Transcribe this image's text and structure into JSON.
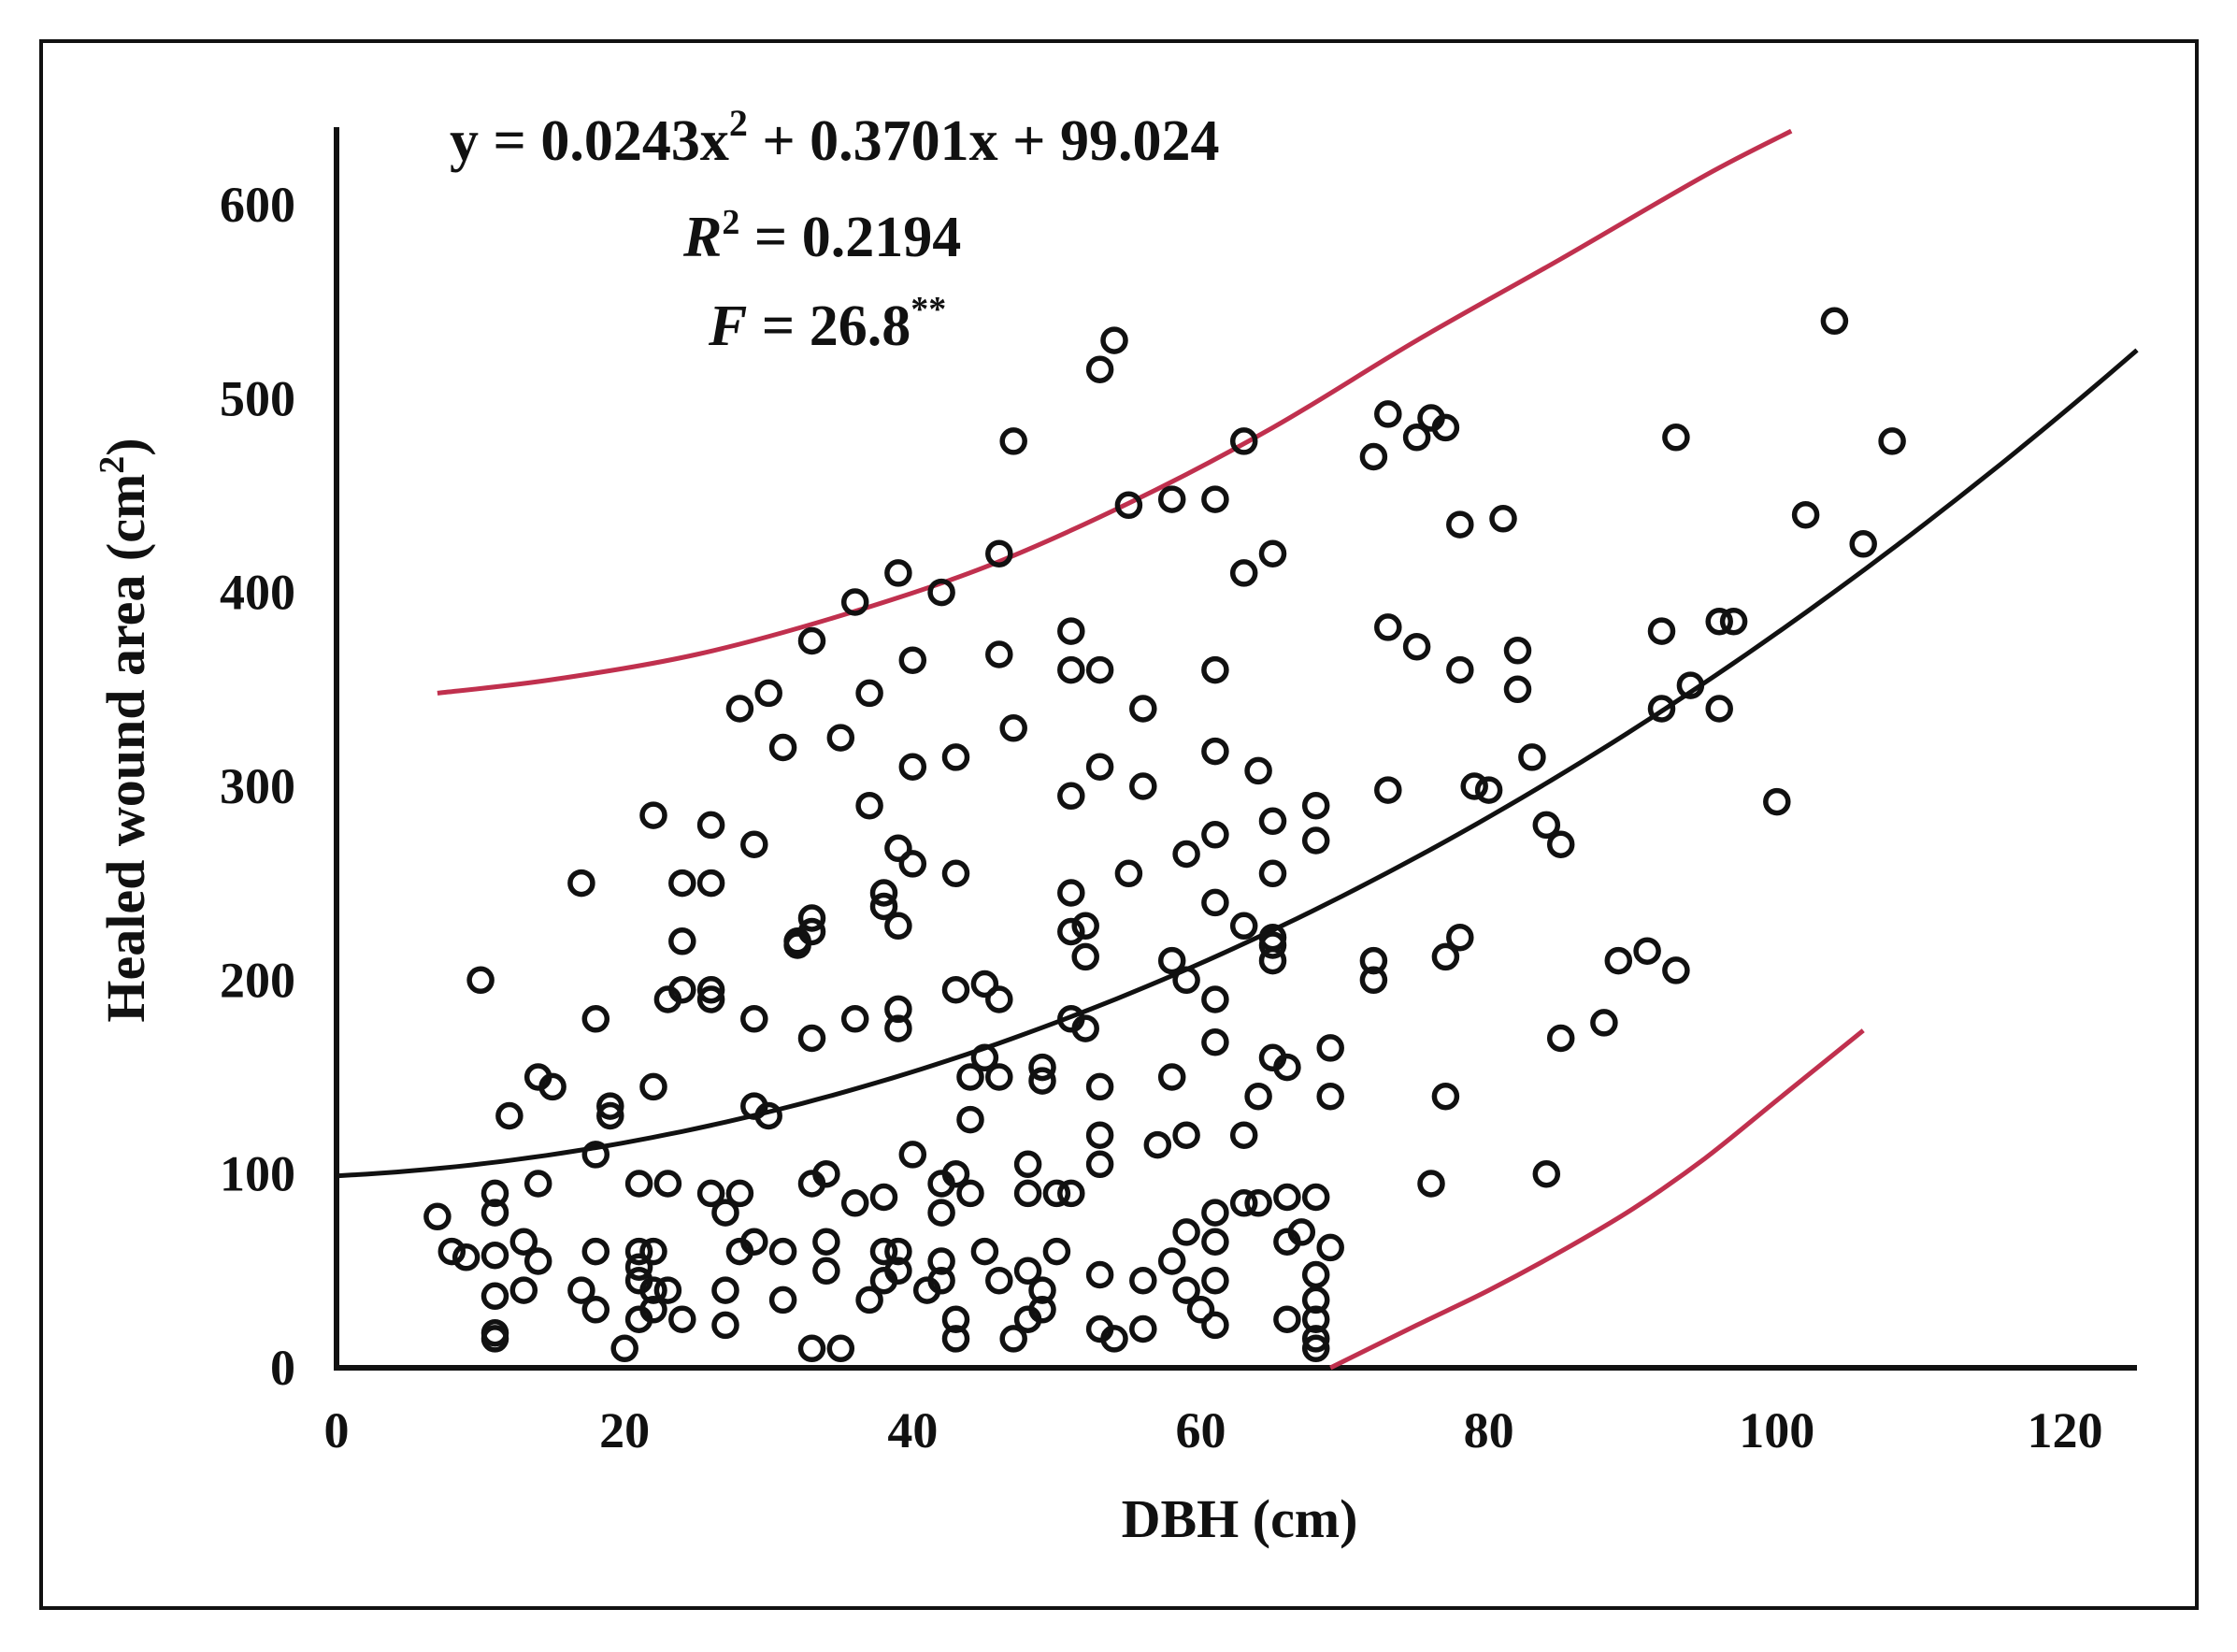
{
  "chart_data": {
    "type": "scatter",
    "xlabel": "DBH (cm)",
    "ylabel_main": "Healed wound area (cm",
    "ylabel_sup": "2",
    "ylabel_close": ")",
    "xlim": [
      0,
      125
    ],
    "ylim": [
      0,
      640
    ],
    "x_ticks": [
      0,
      20,
      40,
      60,
      80,
      100,
      120
    ],
    "x_tick_labels": [
      "0",
      "20",
      "40",
      "60",
      "80",
      "100",
      "120"
    ],
    "y_ticks": [
      0,
      100,
      200,
      300,
      400,
      500,
      600
    ],
    "y_tick_labels": [
      "0",
      "100",
      "200",
      "300",
      "400",
      "500",
      "600"
    ],
    "grid": false,
    "annotations": {
      "equation_prefix": "y = 0.0243x",
      "equation_sup": "2",
      "equation_suffix": " + 0.3701x + 99.024",
      "r2_label_letter": "R",
      "r2_label_sup": "2",
      "r2_value": " = 0.2194",
      "f_label_letter": "F",
      "f_value": " = 26.8",
      "f_sup": "**"
    },
    "fit_curve": {
      "a": 0.0243,
      "b": 0.3701,
      "c": 99.024,
      "x_range": [
        0,
        125
      ],
      "color": "#111111"
    },
    "upper_band": {
      "points": [
        [
          7,
          348
        ],
        [
          15,
          355
        ],
        [
          25,
          368
        ],
        [
          35,
          388
        ],
        [
          45,
          413
        ],
        [
          55,
          446
        ],
        [
          65,
          485
        ],
        [
          75,
          530
        ],
        [
          85,
          572
        ],
        [
          95,
          615
        ],
        [
          101,
          638
        ]
      ],
      "color": "#c0304e"
    },
    "lower_band": {
      "points": [
        [
          69,
          0
        ],
        [
          75,
          22
        ],
        [
          80,
          40
        ],
        [
          85,
          60
        ],
        [
          90,
          82
        ],
        [
          95,
          108
        ],
        [
          100,
          138
        ],
        [
          106,
          174
        ]
      ],
      "color": "#c0304e"
    },
    "marker_color": "#111111",
    "points": [
      [
        7,
        78
      ],
      [
        8,
        60
      ],
      [
        9,
        57
      ],
      [
        10,
        200
      ],
      [
        11,
        90
      ],
      [
        11,
        80
      ],
      [
        11,
        58
      ],
      [
        11,
        37
      ],
      [
        11,
        18
      ],
      [
        11,
        15
      ],
      [
        12,
        130
      ],
      [
        13,
        65
      ],
      [
        13,
        40
      ],
      [
        14,
        150
      ],
      [
        14,
        95
      ],
      [
        14,
        55
      ],
      [
        15,
        145
      ],
      [
        17,
        250
      ],
      [
        17,
        40
      ],
      [
        18,
        180
      ],
      [
        18,
        110
      ],
      [
        18,
        60
      ],
      [
        18,
        30
      ],
      [
        19,
        135
      ],
      [
        19,
        130
      ],
      [
        20,
        10
      ],
      [
        21,
        95
      ],
      [
        21,
        25
      ],
      [
        21,
        60
      ],
      [
        21,
        45
      ],
      [
        21,
        52
      ],
      [
        22,
        285
      ],
      [
        22,
        145
      ],
      [
        22,
        60
      ],
      [
        22,
        40
      ],
      [
        22,
        30
      ],
      [
        23,
        95
      ],
      [
        23,
        190
      ],
      [
        23,
        40
      ],
      [
        24,
        250
      ],
      [
        24,
        220
      ],
      [
        24,
        195
      ],
      [
        24,
        25
      ],
      [
        26,
        250
      ],
      [
        26,
        280
      ],
      [
        26,
        195
      ],
      [
        26,
        190
      ],
      [
        26,
        90
      ],
      [
        27,
        80
      ],
      [
        27,
        40
      ],
      [
        27,
        22
      ],
      [
        28,
        340
      ],
      [
        28,
        90
      ],
      [
        28,
        60
      ],
      [
        29,
        270
      ],
      [
        29,
        180
      ],
      [
        29,
        135
      ],
      [
        29,
        65
      ],
      [
        30,
        348
      ],
      [
        30,
        130
      ],
      [
        31,
        320
      ],
      [
        31,
        60
      ],
      [
        31,
        35
      ],
      [
        32,
        218
      ],
      [
        32,
        220
      ],
      [
        33,
        232
      ],
      [
        33,
        225
      ],
      [
        33,
        170
      ],
      [
        33,
        95
      ],
      [
        33,
        375
      ],
      [
        33,
        10
      ],
      [
        34,
        100
      ],
      [
        34,
        65
      ],
      [
        34,
        50
      ],
      [
        35,
        325
      ],
      [
        35,
        10
      ],
      [
        36,
        395
      ],
      [
        36,
        180
      ],
      [
        36,
        85
      ],
      [
        37,
        290
      ],
      [
        37,
        348
      ],
      [
        37,
        35
      ],
      [
        38,
        238
      ],
      [
        38,
        245
      ],
      [
        38,
        60
      ],
      [
        38,
        45
      ],
      [
        38,
        88
      ],
      [
        39,
        228
      ],
      [
        39,
        185
      ],
      [
        39,
        175
      ],
      [
        39,
        410
      ],
      [
        39,
        268
      ],
      [
        39,
        60
      ],
      [
        39,
        50
      ],
      [
        40,
        365
      ],
      [
        40,
        260
      ],
      [
        40,
        110
      ],
      [
        40,
        310
      ],
      [
        41,
        40
      ],
      [
        42,
        400
      ],
      [
        42,
        80
      ],
      [
        42,
        55
      ],
      [
        42,
        95
      ],
      [
        42,
        45
      ],
      [
        43,
        195
      ],
      [
        43,
        315
      ],
      [
        43,
        255
      ],
      [
        43,
        100
      ],
      [
        43,
        15
      ],
      [
        43,
        25
      ],
      [
        44,
        128
      ],
      [
        44,
        150
      ],
      [
        44,
        90
      ],
      [
        45,
        198
      ],
      [
        45,
        160
      ],
      [
        45,
        60
      ],
      [
        46,
        420
      ],
      [
        46,
        368
      ],
      [
        46,
        190
      ],
      [
        46,
        45
      ],
      [
        46,
        150
      ],
      [
        47,
        330
      ],
      [
        47,
        478
      ],
      [
        47,
        15
      ],
      [
        48,
        90
      ],
      [
        48,
        105
      ],
      [
        48,
        25
      ],
      [
        48,
        50
      ],
      [
        49,
        155
      ],
      [
        49,
        148
      ],
      [
        49,
        40
      ],
      [
        49,
        30
      ],
      [
        50,
        90
      ],
      [
        50,
        60
      ],
      [
        51,
        380
      ],
      [
        51,
        360
      ],
      [
        51,
        295
      ],
      [
        51,
        245
      ],
      [
        51,
        225
      ],
      [
        51,
        180
      ],
      [
        51,
        90
      ],
      [
        52,
        212
      ],
      [
        52,
        228
      ],
      [
        52,
        175
      ],
      [
        53,
        515
      ],
      [
        53,
        360
      ],
      [
        53,
        310
      ],
      [
        53,
        145
      ],
      [
        53,
        120
      ],
      [
        53,
        105
      ],
      [
        53,
        48
      ],
      [
        53,
        20
      ],
      [
        54,
        530
      ],
      [
        54,
        15
      ],
      [
        55,
        255
      ],
      [
        55,
        445
      ],
      [
        56,
        340
      ],
      [
        56,
        300
      ],
      [
        56,
        45
      ],
      [
        56,
        20
      ],
      [
        57,
        115
      ],
      [
        58,
        448
      ],
      [
        58,
        210
      ],
      [
        58,
        150
      ],
      [
        58,
        55
      ],
      [
        59,
        265
      ],
      [
        59,
        200
      ],
      [
        59,
        120
      ],
      [
        59,
        70
      ],
      [
        59,
        40
      ],
      [
        60,
        30
      ],
      [
        61,
        448
      ],
      [
        61,
        360
      ],
      [
        61,
        318
      ],
      [
        61,
        275
      ],
      [
        61,
        240
      ],
      [
        61,
        190
      ],
      [
        61,
        168
      ],
      [
        61,
        80
      ],
      [
        61,
        65
      ],
      [
        61,
        45
      ],
      [
        61,
        22
      ],
      [
        63,
        478
      ],
      [
        63,
        410
      ],
      [
        63,
        228
      ],
      [
        63,
        120
      ],
      [
        63,
        85
      ],
      [
        64,
        308
      ],
      [
        64,
        140
      ],
      [
        64,
        85
      ],
      [
        65,
        420
      ],
      [
        65,
        255
      ],
      [
        65,
        222
      ],
      [
        65,
        218
      ],
      [
        65,
        210
      ],
      [
        65,
        160
      ],
      [
        65,
        282
      ],
      [
        66,
        155
      ],
      [
        66,
        88
      ],
      [
        66,
        65
      ],
      [
        66,
        25
      ],
      [
        67,
        70
      ],
      [
        68,
        290
      ],
      [
        68,
        272
      ],
      [
        68,
        88
      ],
      [
        68,
        48
      ],
      [
        68,
        35
      ],
      [
        68,
        25
      ],
      [
        68,
        15
      ],
      [
        68,
        10
      ],
      [
        69,
        165
      ],
      [
        69,
        140
      ],
      [
        69,
        62
      ],
      [
        72,
        470
      ],
      [
        72,
        210
      ],
      [
        72,
        200
      ],
      [
        73,
        492
      ],
      [
        73,
        382
      ],
      [
        73,
        298
      ],
      [
        75,
        372
      ],
      [
        75,
        480
      ],
      [
        76,
        490
      ],
      [
        76,
        95
      ],
      [
        77,
        485
      ],
      [
        77,
        212
      ],
      [
        77,
        140
      ],
      [
        78,
        435
      ],
      [
        78,
        360
      ],
      [
        78,
        222
      ],
      [
        79,
        300
      ],
      [
        80,
        298
      ],
      [
        81,
        438
      ],
      [
        82,
        370
      ],
      [
        82,
        350
      ],
      [
        83,
        315
      ],
      [
        84,
        100
      ],
      [
        84,
        280
      ],
      [
        85,
        170
      ],
      [
        85,
        270
      ],
      [
        88,
        178
      ],
      [
        89,
        210
      ],
      [
        91,
        215
      ],
      [
        92,
        340
      ],
      [
        92,
        380
      ],
      [
        93,
        205
      ],
      [
        93,
        480
      ],
      [
        94,
        352
      ],
      [
        96,
        340
      ],
      [
        96,
        385
      ],
      [
        97,
        385
      ],
      [
        100,
        292
      ],
      [
        102,
        440
      ],
      [
        104,
        540
      ],
      [
        106,
        425
      ],
      [
        108,
        478
      ]
    ]
  }
}
